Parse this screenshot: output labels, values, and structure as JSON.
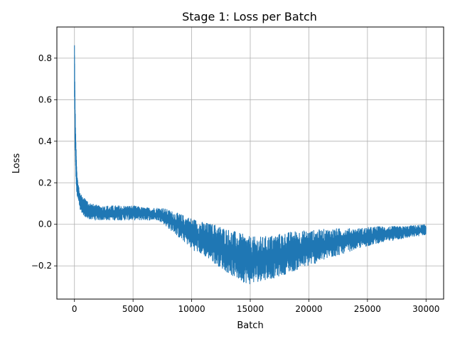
{
  "chart_data": {
    "type": "line",
    "title": "Stage 1: Loss per Batch",
    "xlabel": "Batch",
    "ylabel": "Loss",
    "xlim": [
      -1500,
      31500
    ],
    "ylim": [
      -0.36,
      0.95
    ],
    "grid": true,
    "legend": "none",
    "x_ticks": [
      0,
      5000,
      10000,
      15000,
      20000,
      25000,
      30000
    ],
    "x_tick_labels": [
      "0",
      "5000",
      "10000",
      "15000",
      "20000",
      "25000",
      "30000"
    ],
    "y_ticks": [
      -0.2,
      0.0,
      0.2,
      0.4,
      0.6,
      0.8
    ],
    "y_tick_labels": [
      "−0.2",
      "0.0",
      "0.2",
      "0.4",
      "0.6",
      "0.8"
    ],
    "series": [
      {
        "color": "#1f77b4",
        "description_points": {
          "x": [
            0,
            20,
            50,
            100,
            150,
            200,
            300,
            400,
            500,
            700,
            1000,
            1500,
            2000,
            3000,
            4000,
            5000,
            6000,
            7000,
            7500,
            8000,
            8500,
            9000,
            9500,
            10000,
            11000,
            12000,
            13000,
            14000,
            15000,
            16000,
            17000,
            18000,
            19000,
            20000,
            22000,
            24000,
            26000,
            28000,
            30000
          ],
          "y_low": [
            0.6,
            0.45,
            0.35,
            0.25,
            0.18,
            0.15,
            0.12,
            0.09,
            0.07,
            0.05,
            0.03,
            0.02,
            0.02,
            0.02,
            0.02,
            0.02,
            0.02,
            0.02,
            0.01,
            -0.02,
            -0.04,
            -0.07,
            -0.09,
            -0.12,
            -0.15,
            -0.19,
            -0.23,
            -0.27,
            -0.29,
            -0.27,
            -0.26,
            -0.24,
            -0.22,
            -0.2,
            -0.16,
            -0.12,
            -0.09,
            -0.07,
            -0.05
          ],
          "y_high": [
            0.91,
            0.8,
            0.62,
            0.45,
            0.35,
            0.27,
            0.2,
            0.17,
            0.15,
            0.13,
            0.12,
            0.1,
            0.09,
            0.09,
            0.09,
            0.09,
            0.08,
            0.08,
            0.08,
            0.07,
            0.06,
            0.05,
            0.04,
            0.03,
            0.01,
            0.0,
            -0.02,
            -0.04,
            -0.06,
            -0.06,
            -0.05,
            -0.04,
            -0.03,
            -0.03,
            -0.02,
            -0.02,
            -0.01,
            -0.01,
            0.0
          ]
        }
      }
    ]
  }
}
